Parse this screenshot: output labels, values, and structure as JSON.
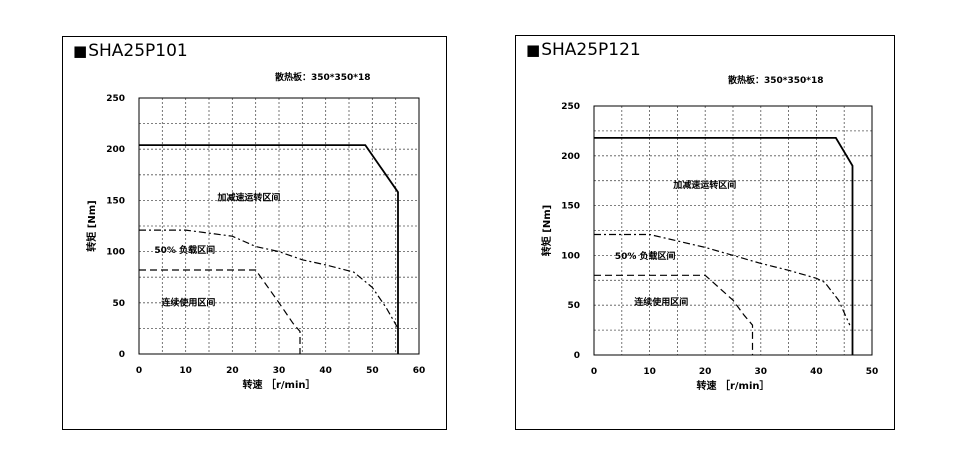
{
  "chart_data": [
    {
      "type": "line",
      "title": "SHA25P101",
      "title_marker": "■",
      "heatsink_label": "散热板：350*350*18",
      "xlabel": "转速 ［r/min］",
      "ylabel": "转矩 [Nm]",
      "xlim": [
        0,
        60
      ],
      "ylim": [
        0,
        250
      ],
      "xticks": [
        0,
        10,
        20,
        30,
        40,
        50,
        60
      ],
      "yticks": [
        0,
        50,
        100,
        150,
        200,
        250
      ],
      "grid": "dashed",
      "regions": {
        "accel": "加减速运转区间",
        "half_load": "50% 负载区间",
        "continuous": "连续使用区间"
      },
      "series": [
        {
          "style": "solid",
          "x": [
            0,
            48.5,
            55.5,
            55.5
          ],
          "y": [
            204,
            204,
            158,
            0
          ]
        },
        {
          "style": "dash-dot",
          "x": [
            0,
            10,
            20,
            25,
            30,
            35,
            40,
            46,
            50,
            53,
            55.5
          ],
          "y": [
            121,
            121,
            115,
            105,
            100,
            92,
            87,
            80,
            65,
            45,
            25
          ]
        },
        {
          "style": "dashed",
          "x": [
            0,
            25,
            30,
            33,
            34.5,
            34.5
          ],
          "y": [
            82,
            82,
            50,
            30,
            22,
            0
          ]
        }
      ]
    },
    {
      "type": "line",
      "title": "SHA25P121",
      "title_marker": "■",
      "heatsink_label": "散热板：350*350*18",
      "xlabel": "转速 ［r/min］",
      "ylabel": "转矩 [Nm]",
      "xlim": [
        0,
        50
      ],
      "ylim": [
        0,
        250
      ],
      "xticks": [
        0,
        10,
        20,
        30,
        40,
        50
      ],
      "yticks": [
        0,
        50,
        100,
        150,
        200,
        250
      ],
      "grid": "dashed",
      "regions": {
        "accel": "加减速运转区间",
        "half_load": "50% 负载区间",
        "continuous": "连续使用区间"
      },
      "series": [
        {
          "style": "solid",
          "x": [
            0,
            43.5,
            46.5,
            46.5
          ],
          "y": [
            218,
            218,
            190,
            0
          ]
        },
        {
          "style": "dash-dot",
          "x": [
            0,
            10,
            20,
            25,
            30,
            35,
            40,
            41.5,
            44,
            46
          ],
          "y": [
            121,
            121,
            108,
            100,
            92,
            85,
            77,
            73,
            55,
            30
          ]
        },
        {
          "style": "dashed",
          "x": [
            0,
            20,
            25,
            27,
            28.5,
            28.5
          ],
          "y": [
            80,
            80,
            55,
            40,
            30,
            0
          ]
        }
      ]
    }
  ]
}
